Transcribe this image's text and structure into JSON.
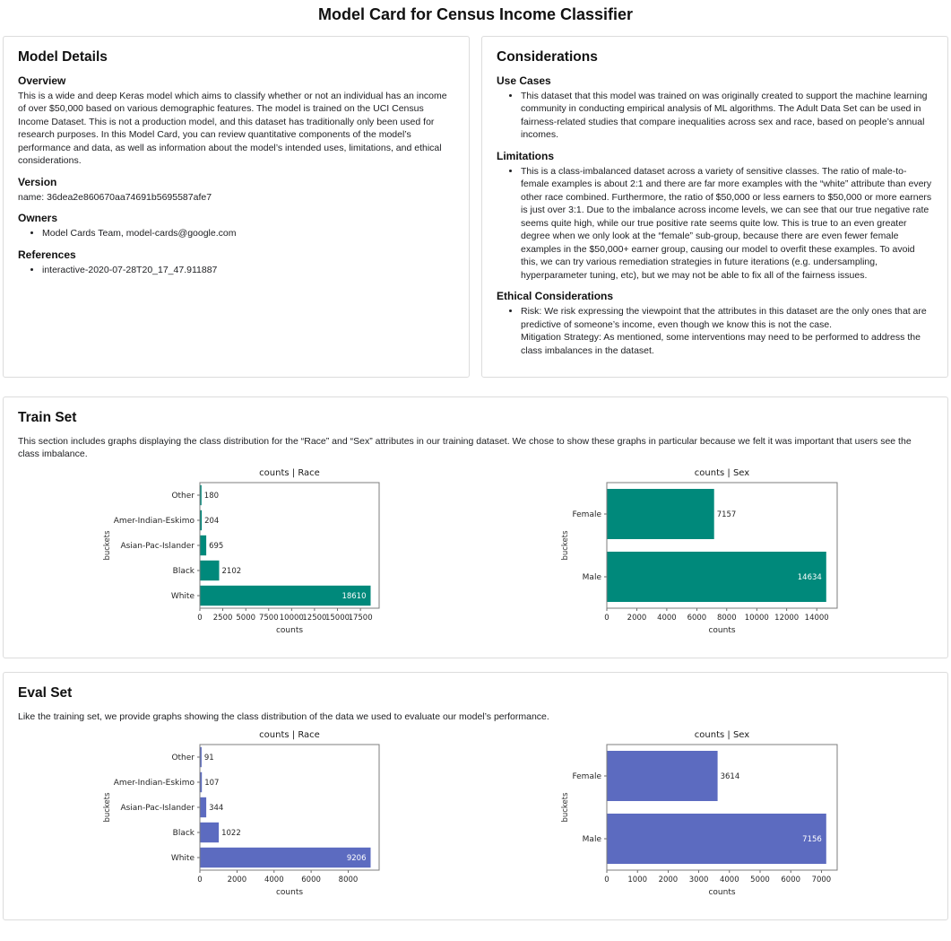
{
  "page_title": "Model Card for Census Income Classifier",
  "model_details": {
    "title": "Model Details",
    "overview_heading": "Overview",
    "overview_text": "This is a wide and deep Keras model which aims to classify whether or not an individual has an income of over $50,000 based on various demographic features. The model is trained on the UCI Census Income Dataset. This is not a production model, and this dataset has traditionally only been used for research purposes. In this Model Card, you can review quantitative components of the model’s performance and data, as well as information about the model’s intended uses, limitations, and ethical considerations.",
    "version_heading": "Version",
    "version_text": "name: 36dea2e860670aa74691b5695587afe7",
    "owners_heading": "Owners",
    "owners_items": [
      "Model Cards Team, model-cards@google.com"
    ],
    "references_heading": "References",
    "references_items": [
      "interactive-2020-07-28T20_17_47.911887"
    ]
  },
  "considerations": {
    "title": "Considerations",
    "use_cases_heading": "Use Cases",
    "use_cases_items": [
      "This dataset that this model was trained on was originally created to support the machine learning community in conducting empirical analysis of ML algorithms. The Adult Data Set can be used in fairness-related studies that compare inequalities across sex and race, based on people’s annual incomes."
    ],
    "limitations_heading": "Limitations",
    "limitations_items": [
      "This is a class-imbalanced dataset across a variety of sensitive classes. The ratio of male-to-female examples is about 2:1 and there are far more examples with the “white” attribute than every other race combined. Furthermore, the ratio of $50,000 or less earners to $50,000 or more earners is just over 3:1. Due to the imbalance across income levels, we can see that our true negative rate seems quite high, while our true positive rate seems quite low. This is true to an even greater degree when we only look at the “female” sub-group, because there are even fewer female examples in the $50,000+ earner group, causing our model to overfit these examples. To avoid this, we can try various remediation strategies in future iterations (e.g. undersampling, hyperparameter tuning, etc), but we may not be able to fix all of the fairness issues."
    ],
    "ethical_heading": "Ethical Considerations",
    "ethical_items": [
      "Risk: We risk expressing the viewpoint that the attributes in this dataset are the only ones that are predictive of someone’s income, even though we know this is not the case.\nMitigation Strategy: As mentioned, some interventions may need to be performed to address the class imbalances in the dataset."
    ]
  },
  "train_set": {
    "title": "Train Set",
    "description": "This section includes graphs displaying the class distribution for the “Race” and “Sex” attributes in our training dataset. We chose to show these graphs in particular because we felt it was important that users see the class imbalance."
  },
  "eval_set": {
    "title": "Eval Set",
    "description": "Like the training set, we provide graphs showing the class distribution of the data we used to evaluate our model’s performance."
  },
  "chart_data": [
    {
      "id": "train-race-chart",
      "type": "bar",
      "orientation": "horizontal",
      "title": "counts | Race",
      "xlabel": "counts",
      "ylabel": "buckets",
      "categories": [
        "Other",
        "Amer-Indian-Eskimo",
        "Asian-Pac-Islander",
        "Black",
        "White"
      ],
      "values": [
        180,
        204,
        695,
        2102,
        18610
      ],
      "xticks": [
        0,
        2500,
        5000,
        7500,
        10000,
        12500,
        15000,
        17500
      ],
      "xlim": [
        0,
        19541
      ],
      "bar_color": "#00897b",
      "grid": false,
      "legend": "none"
    },
    {
      "id": "train-sex-chart",
      "type": "bar",
      "orientation": "horizontal",
      "title": "counts | Sex",
      "xlabel": "counts",
      "ylabel": "buckets",
      "categories": [
        "Female",
        "Male"
      ],
      "values": [
        7157,
        14634
      ],
      "xticks": [
        0,
        2000,
        4000,
        6000,
        8000,
        10000,
        12000,
        14000
      ],
      "xlim": [
        0,
        15366
      ],
      "bar_color": "#00897b",
      "grid": false,
      "legend": "none"
    },
    {
      "id": "eval-race-chart",
      "type": "bar",
      "orientation": "horizontal",
      "title": "counts | Race",
      "xlabel": "counts",
      "ylabel": "buckets",
      "categories": [
        "Other",
        "Amer-Indian-Eskimo",
        "Asian-Pac-Islander",
        "Black",
        "White"
      ],
      "values": [
        91,
        107,
        344,
        1022,
        9206
      ],
      "xticks": [
        0,
        2000,
        4000,
        6000,
        8000
      ],
      "xlim": [
        0,
        9666
      ],
      "bar_color": "#5c6bc0",
      "grid": false,
      "legend": "none"
    },
    {
      "id": "eval-sex-chart",
      "type": "bar",
      "orientation": "horizontal",
      "title": "counts | Sex",
      "xlabel": "counts",
      "ylabel": "buckets",
      "categories": [
        "Female",
        "Male"
      ],
      "values": [
        3614,
        7156
      ],
      "xticks": [
        0,
        1000,
        2000,
        3000,
        4000,
        5000,
        6000,
        7000
      ],
      "xlim": [
        0,
        7514
      ],
      "bar_color": "#5c6bc0",
      "grid": false,
      "legend": "none"
    }
  ]
}
